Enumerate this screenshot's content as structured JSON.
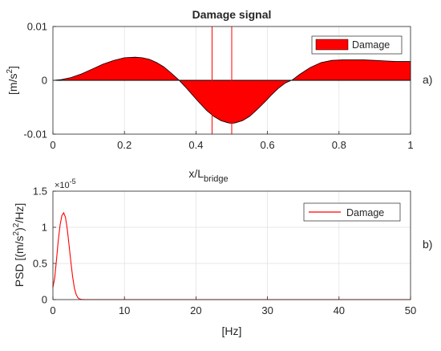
{
  "chart_data": [
    {
      "type": "area",
      "title": "Damage signal",
      "xlabel_main": "x/L",
      "xlabel_sub": "bridge",
      "ylabel_main": "[m/s",
      "ylabel_sup": "2",
      "ylabel_end": "]",
      "panel_label": "a)",
      "xlim": [
        0,
        1
      ],
      "ylim": [
        -0.01,
        0.01
      ],
      "xticks": [
        0,
        0.2,
        0.4,
        0.6,
        0.8,
        1
      ],
      "xtick_labels": [
        "0",
        "0.2",
        "0.4",
        "0.6",
        "0.8",
        "1"
      ],
      "yticks": [
        -0.01,
        0,
        0.01
      ],
      "ytick_labels": [
        "-0.01",
        "0",
        "0.01"
      ],
      "grid": true,
      "legend": "top-right",
      "series": [
        {
          "name": "Damage",
          "color": "#ff0000",
          "x": [
            0,
            0.02,
            0.05,
            0.08,
            0.11,
            0.14,
            0.17,
            0.2,
            0.23,
            0.25,
            0.27,
            0.29,
            0.31,
            0.33,
            0.35,
            0.37,
            0.39,
            0.41,
            0.43,
            0.45,
            0.47,
            0.49,
            0.5,
            0.51,
            0.53,
            0.55,
            0.57,
            0.59,
            0.61,
            0.63,
            0.65,
            0.67,
            0.69,
            0.72,
            0.75,
            0.78,
            0.81,
            0.84,
            0.87,
            0.9,
            0.93,
            0.96,
            1
          ],
          "y": [
            0,
            0.0001,
            0.0005,
            0.0012,
            0.0021,
            0.003,
            0.0037,
            0.0042,
            0.0043,
            0.0042,
            0.0039,
            0.0033,
            0.0025,
            0.0014,
            0.0002,
            -0.0012,
            -0.0027,
            -0.0042,
            -0.0056,
            -0.0067,
            -0.0075,
            -0.0079,
            -0.008,
            -0.0079,
            -0.0075,
            -0.0067,
            -0.0055,
            -0.0042,
            -0.0028,
            -0.0015,
            -0.0005,
            0.0001,
            0.0011,
            0.0024,
            0.0033,
            0.0037,
            0.0038,
            0.0038,
            0.0038,
            0.0037,
            0.0036,
            0.0035,
            0.0035
          ]
        }
      ],
      "markers": [
        {
          "name": "damage-zone-start",
          "x": 0.445,
          "color": "#ff0000"
        },
        {
          "name": "damage-zone-end",
          "x": 0.5,
          "color": "#ff0000"
        }
      ]
    },
    {
      "type": "line",
      "title": "",
      "xlabel": "[Hz]",
      "ylabel": "PSD [(m/s²)²/Hz]",
      "ylabel_parts": [
        "PSD [(m/s",
        "2",
        ")",
        "2",
        "/Hz]"
      ],
      "panel_label": "b)",
      "xlim": [
        0,
        50
      ],
      "ylim": [
        0,
        1.5
      ],
      "y_exponent": "×10",
      "y_exponent_power": "-5",
      "xticks": [
        0,
        10,
        20,
        30,
        40,
        50
      ],
      "xtick_labels": [
        "0",
        "10",
        "20",
        "30",
        "40",
        "50"
      ],
      "yticks": [
        0,
        0.5,
        1,
        1.5
      ],
      "ytick_labels": [
        "0",
        "0.5",
        "1",
        "1.5"
      ],
      "grid": true,
      "legend": "top-right",
      "series": [
        {
          "name": "Damage",
          "color": "#ff0000",
          "x": [
            0,
            0.25,
            0.5,
            0.75,
            1,
            1.25,
            1.5,
            1.75,
            2,
            2.25,
            2.5,
            2.75,
            3,
            3.25,
            3.5,
            3.75,
            4,
            4.5,
            5,
            10,
            20,
            30,
            40,
            50
          ],
          "y": [
            0.17,
            0.3,
            0.55,
            0.82,
            1.03,
            1.16,
            1.2,
            1.14,
            0.98,
            0.76,
            0.53,
            0.32,
            0.16,
            0.07,
            0.025,
            0.008,
            0.002,
            0,
            0,
            0,
            0,
            0,
            0,
            0
          ]
        }
      ]
    }
  ]
}
